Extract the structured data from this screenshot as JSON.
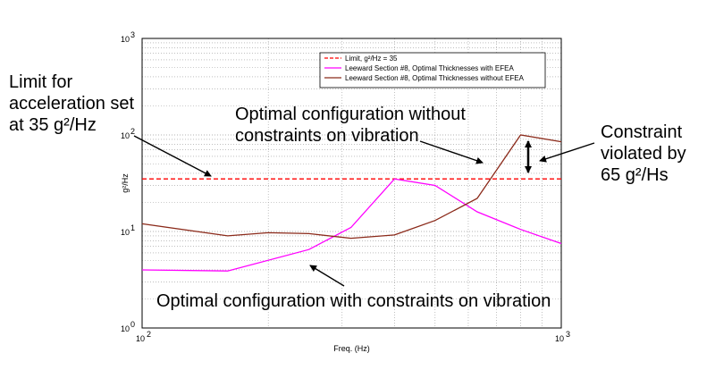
{
  "chart_data": {
    "type": "line",
    "x_scale": "log",
    "y_scale": "log",
    "xlabel": "Freq. (Hz)",
    "ylabel": "g²/Hz",
    "xlim": [
      100,
      1000
    ],
    "ylim": [
      1,
      1000
    ],
    "grid": true,
    "legend_position": "top-right",
    "x_ticks": [
      {
        "value": 100,
        "base": "10",
        "exp": "2"
      },
      {
        "value": 1000,
        "base": "10",
        "exp": "3"
      }
    ],
    "y_ticks": [
      {
        "value": 1,
        "base": "10",
        "exp": "0"
      },
      {
        "value": 10,
        "base": "10",
        "exp": "1"
      },
      {
        "value": 100,
        "base": "10",
        "exp": "2"
      },
      {
        "value": 1000,
        "base": "10",
        "exp": "3"
      }
    ],
    "series": [
      {
        "name": "Limit, g²/Hz = 35",
        "color": "#ff0000",
        "style": "dashed",
        "points": [
          [
            100,
            35
          ],
          [
            1000,
            35
          ]
        ]
      },
      {
        "name": "Leeward Section #8, Optimal Thicknesses with EFEA",
        "color": "#ff00ff",
        "style": "solid",
        "points": [
          [
            100,
            4
          ],
          [
            160,
            3.9
          ],
          [
            250,
            6.5
          ],
          [
            315,
            11
          ],
          [
            400,
            35
          ],
          [
            500,
            30
          ],
          [
            630,
            16
          ],
          [
            800,
            10.5
          ],
          [
            1000,
            7.5
          ]
        ]
      },
      {
        "name": "Leeward Section #8, Optimal Thicknesses without EFEA",
        "color": "#8b2a1a",
        "style": "solid",
        "points": [
          [
            100,
            12
          ],
          [
            160,
            9
          ],
          [
            200,
            9.7
          ],
          [
            250,
            9.5
          ],
          [
            315,
            8.5
          ],
          [
            400,
            9.2
          ],
          [
            500,
            13
          ],
          [
            630,
            22
          ],
          [
            800,
            100
          ],
          [
            1000,
            85
          ]
        ]
      }
    ],
    "annotations": [
      {
        "id": "limit",
        "lines": [
          "Limit for",
          "acceleration set",
          "at 35 g²/Hz"
        ]
      },
      {
        "id": "without",
        "lines": [
          "Optimal configuration without",
          "constraints on vibration"
        ]
      },
      {
        "id": "violated",
        "lines": [
          "Constraint",
          "violated by",
          "65 g²/Hs"
        ]
      },
      {
        "id": "with",
        "lines": [
          "Optimal configuration with constraints on vibration"
        ]
      }
    ]
  }
}
